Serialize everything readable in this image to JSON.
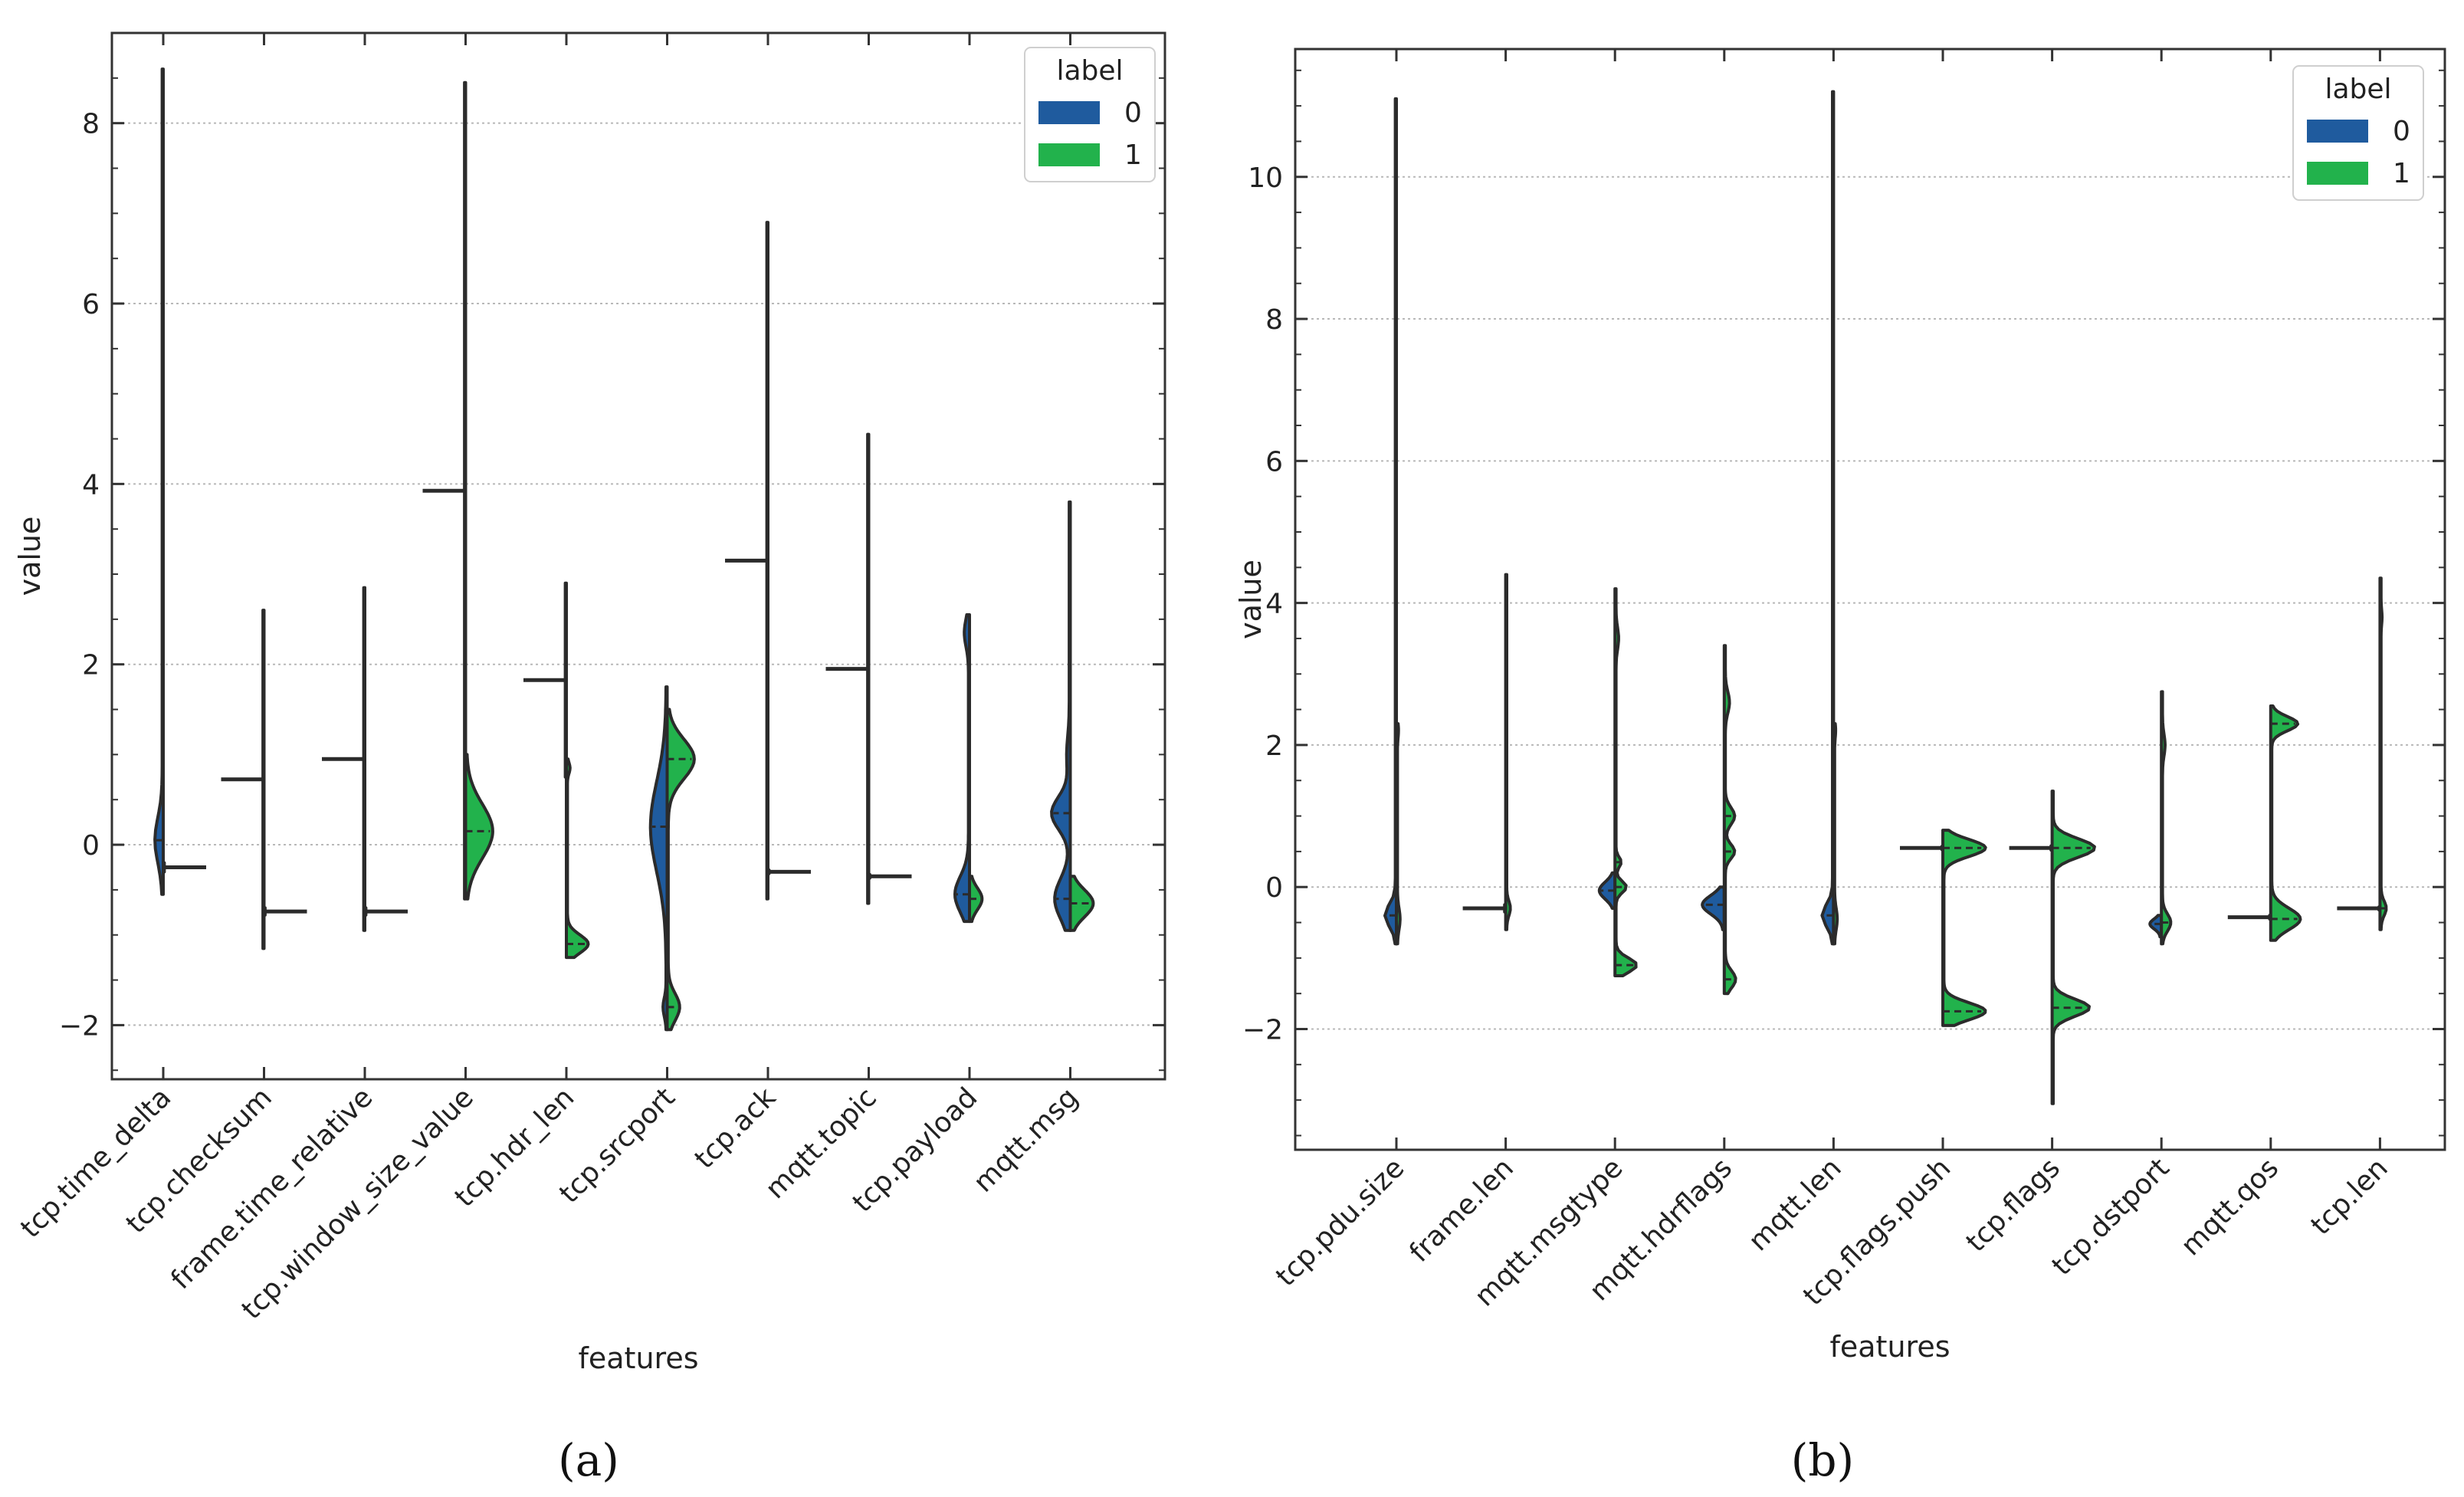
{
  "colors": {
    "label0": "#1f5b9e",
    "label1": "#22b24c",
    "outline": "#2b2b2b",
    "grid": "#b8b8b8"
  },
  "chart_data": [
    {
      "panel": "a",
      "type": "violin",
      "caption": "(a)",
      "title": "",
      "xlabel": "features",
      "ylabel": "value",
      "ylim": [
        -2.6,
        9.0
      ],
      "yticks": [
        -2,
        0,
        2,
        4,
        6,
        8
      ],
      "ytick_labels": [
        "−2",
        "0",
        "2",
        "4",
        "6",
        "8"
      ],
      "grid": true,
      "legend": {
        "title": "label",
        "position": "top-right",
        "entries": [
          "0",
          "1"
        ]
      },
      "categories": [
        "tcp.time_delta",
        "tcp.checksum",
        "frame.time_relative",
        "tcp.window_size_value",
        "tcp.hdr_len",
        "tcp.srcport",
        "tcp.ack",
        "mqtt.topic",
        "tcp.payload",
        "mqtt.msg"
      ],
      "series": [
        {
          "name": "0",
          "side": "left",
          "violins": [
            {
              "min": -0.55,
              "max": 8.6,
              "bumps": [
                [
                  0.05,
                  0.14,
                  0.25
                ]
              ]
            },
            {
              "min": -1.15,
              "max": 2.6,
              "bumps": []
            },
            {
              "min": -0.95,
              "max": 2.85,
              "bumps": []
            },
            {
              "min": -0.6,
              "max": 8.45,
              "bumps": []
            },
            {
              "min": 0.75,
              "max": 2.9,
              "bumps": []
            },
            {
              "min": -2.05,
              "max": 1.75,
              "bumps": [
                [
                  0.2,
                  0.3,
                  0.5
                ],
                [
                  -1.8,
                  0.06,
                  0.1
                ]
              ]
            },
            {
              "min": -0.6,
              "max": 6.9,
              "bumps": []
            },
            {
              "min": -0.65,
              "max": 4.55,
              "bumps": []
            },
            {
              "min": -0.85,
              "max": 2.55,
              "bumps": [
                [
                  -0.55,
                  0.26,
                  0.2
                ],
                [
                  2.35,
                  0.08,
                  0.15
                ]
              ]
            },
            {
              "min": -0.95,
              "max": 3.8,
              "bumps": [
                [
                  0.35,
                  0.34,
                  0.18
                ],
                [
                  -0.6,
                  0.28,
                  0.22
                ],
                [
                  1.0,
                  0.05,
                  0.2
                ]
              ]
            }
          ]
        },
        {
          "name": "1",
          "side": "right",
          "violins": [
            {
              "min": -0.3,
              "max": -0.2,
              "bumps": []
            },
            {
              "min": -0.78,
              "max": -0.7,
              "bumps": []
            },
            {
              "min": -0.78,
              "max": -0.7,
              "bumps": []
            },
            {
              "min": -0.6,
              "max": 1.0,
              "bumps": [
                [
                  0.15,
                  0.5,
                  0.3
                ]
              ]
            },
            {
              "min": -1.25,
              "max": 0.95,
              "bumps": [
                [
                  -1.1,
                  0.4,
                  0.1
                ],
                [
                  0.85,
                  0.05,
                  0.06
                ]
              ]
            },
            {
              "min": -2.05,
              "max": 1.5,
              "bumps": [
                [
                  0.95,
                  0.5,
                  0.22
                ],
                [
                  -1.8,
                  0.22,
                  0.15
                ]
              ]
            },
            {
              "min": -0.32,
              "max": -0.28,
              "bumps": []
            },
            {
              "min": -0.37,
              "max": -0.33,
              "bumps": []
            },
            {
              "min": -0.85,
              "max": -0.35,
              "bumps": [
                [
                  -0.6,
                  0.22,
                  0.12
                ]
              ]
            },
            {
              "min": -0.95,
              "max": -0.35,
              "bumps": [
                [
                  -0.65,
                  0.42,
                  0.15
                ]
              ]
            }
          ]
        }
      ]
    },
    {
      "panel": "b",
      "type": "violin",
      "caption": "(b)",
      "title": "",
      "xlabel": "features",
      "ylabel": "value",
      "ylim": [
        -3.7,
        11.8
      ],
      "yticks": [
        -2,
        0,
        2,
        4,
        6,
        8,
        10
      ],
      "ytick_labels": [
        "−2",
        "0",
        "2",
        "4",
        "6",
        "8",
        "10"
      ],
      "grid": true,
      "legend": {
        "title": "label",
        "position": "top-right",
        "entries": [
          "0",
          "1"
        ]
      },
      "categories": [
        "tcp.pdu.size",
        "frame.len",
        "mqtt.msgtype",
        "mqtt.hdrflags",
        "mqtt.len",
        "tcp.flags.push",
        "tcp.flags",
        "tcp.dstport",
        "mqtt.qos",
        "tcp.len"
      ],
      "series": [
        {
          "name": "0",
          "side": "left",
          "violins": [
            {
              "min": -0.8,
              "max": 11.1,
              "bumps": [
                [
                  -0.4,
                  0.2,
                  0.15
                ]
              ]
            },
            {
              "min": -0.35,
              "max": -0.25,
              "bumps": []
            },
            {
              "min": -0.3,
              "max": 0.2,
              "bumps": [
                [
                  -0.05,
                  0.28,
                  0.12
                ]
              ]
            },
            {
              "min": -0.6,
              "max": 0.0,
              "bumps": [
                [
                  -0.25,
                  0.4,
                  0.13
                ]
              ]
            },
            {
              "min": -0.8,
              "max": 11.2,
              "bumps": [
                [
                  -0.4,
                  0.2,
                  0.15
                ]
              ]
            },
            {
              "min": 0.53,
              "max": 0.57,
              "bumps": []
            },
            {
              "min": 0.52,
              "max": 0.58,
              "bumps": []
            },
            {
              "min": -0.7,
              "max": -0.4,
              "bumps": [
                [
                  -0.52,
                  0.2,
                  0.07
                ]
              ]
            },
            {
              "min": -0.45,
              "max": -0.4,
              "bumps": []
            },
            {
              "min": -0.32,
              "max": -0.28,
              "bumps": []
            }
          ]
        },
        {
          "name": "1",
          "side": "right",
          "violins": [
            {
              "min": -0.8,
              "max": 2.3,
              "bumps": [
                [
                  -0.45,
                  0.05,
                  0.15
                ],
                [
                  2.2,
                  0.02,
                  0.1
                ]
              ]
            },
            {
              "min": -0.6,
              "max": 4.4,
              "bumps": [
                [
                  -0.3,
                  0.07,
                  0.1
                ]
              ]
            },
            {
              "min": -1.25,
              "max": 4.2,
              "bumps": [
                [
                  -1.1,
                  0.4,
                  0.1
                ],
                [
                  0.0,
                  0.2,
                  0.08
                ],
                [
                  0.35,
                  0.1,
                  0.07
                ],
                [
                  3.5,
                  0.05,
                  0.15
                ]
              ]
            },
            {
              "min": -1.5,
              "max": 3.4,
              "bumps": [
                [
                  -1.3,
                  0.2,
                  0.12
                ],
                [
                  0.5,
                  0.18,
                  0.1
                ],
                [
                  1.0,
                  0.18,
                  0.12
                ],
                [
                  2.6,
                  0.08,
                  0.15
                ]
              ]
            },
            {
              "min": -0.8,
              "max": 2.3,
              "bumps": [
                [
                  -0.45,
                  0.05,
                  0.15
                ],
                [
                  2.2,
                  0.02,
                  0.1
                ]
              ]
            },
            {
              "min": -1.95,
              "max": 0.8,
              "bumps": [
                [
                  0.55,
                  0.8,
                  0.12
                ],
                [
                  -1.75,
                  0.8,
                  0.12
                ]
              ]
            },
            {
              "min": -3.05,
              "max": 1.35,
              "bumps": [
                [
                  0.55,
                  0.8,
                  0.13
                ],
                [
                  -1.7,
                  0.7,
                  0.12
                ]
              ]
            },
            {
              "min": -0.8,
              "max": 2.75,
              "bumps": [
                [
                  -0.5,
                  0.16,
                  0.12
                ],
                [
                  2.0,
                  0.05,
                  0.15
                ]
              ]
            },
            {
              "min": -0.75,
              "max": 2.55,
              "bumps": [
                [
                  2.3,
                  0.5,
                  0.1
                ],
                [
                  -0.45,
                  0.55,
                  0.15
                ]
              ]
            },
            {
              "min": -0.6,
              "max": 4.35,
              "bumps": [
                [
                  -0.3,
                  0.1,
                  0.1
                ],
                [
                  3.8,
                  0.02,
                  0.1
                ]
              ]
            }
          ]
        }
      ]
    }
  ]
}
